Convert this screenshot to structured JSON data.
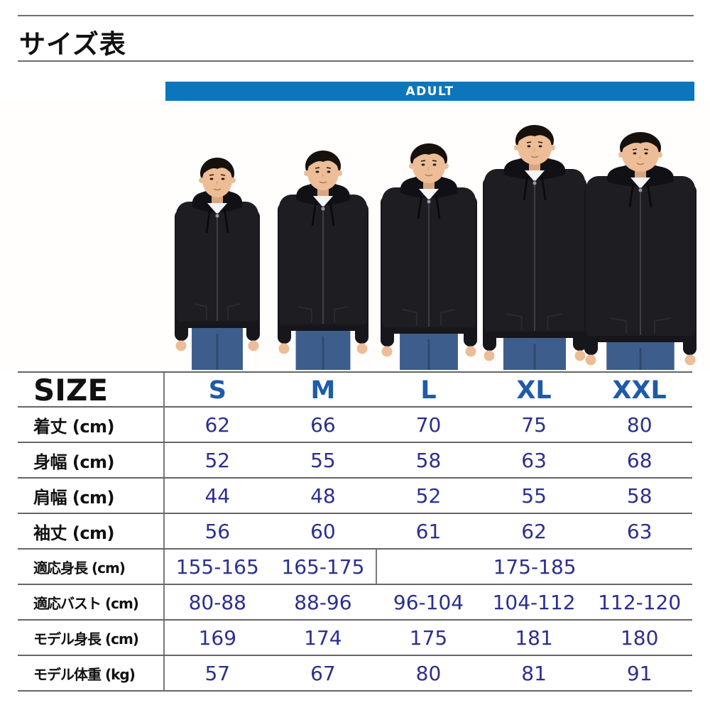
{
  "page": {
    "title": "サイズ表"
  },
  "banner": {
    "label": "ADULT",
    "color": "#0b76bc"
  },
  "models": [
    {
      "figure": "model-s",
      "column": "S"
    },
    {
      "figure": "model-m",
      "column": "M"
    },
    {
      "figure": "model-l",
      "column": "L"
    },
    {
      "figure": "model-xl",
      "column": "XL"
    },
    {
      "figure": "model-xxl",
      "column": "XXL"
    }
  ],
  "table": {
    "header": {
      "label": "SIZE",
      "columns": [
        "S",
        "M",
        "L",
        "XL",
        "XXL"
      ]
    },
    "rows": [
      {
        "label": "着丈 (cm)",
        "values": [
          "62",
          "66",
          "70",
          "75",
          "80"
        ]
      },
      {
        "label": "身幅 (cm)",
        "values": [
          "52",
          "55",
          "58",
          "63",
          "68"
        ]
      },
      {
        "label": "肩幅 (cm)",
        "values": [
          "44",
          "48",
          "52",
          "55",
          "58"
        ]
      },
      {
        "label": "袖丈 (cm)",
        "values": [
          "56",
          "60",
          "61",
          "62",
          "63"
        ]
      },
      {
        "label": "適応身長 (cm)",
        "values": [
          "155-165",
          "165-175",
          "175-185"
        ],
        "merged_last_span": 3
      },
      {
        "label": "適応バスト (cm)",
        "values": [
          "80-88",
          "88-96",
          "96-104",
          "104-112",
          "112-120"
        ]
      },
      {
        "label": "モデル身長 (cm)",
        "values": [
          "169",
          "174",
          "175",
          "181",
          "180"
        ]
      },
      {
        "label": "モデル体重 (kg)",
        "values": [
          "57",
          "67",
          "80",
          "81",
          "91"
        ]
      }
    ]
  },
  "colors": {
    "banner_blue": "#0b76bc",
    "size_letter_blue": "#1f5ba8",
    "value_navy": "#2b2f8e",
    "hoodie": "#1d1d22",
    "hoodie_dark": "#16161b",
    "hood": "#111115",
    "hair": "#17110d",
    "skin": "#ecbd96",
    "skin_shade": "#d9a57f",
    "tee_white": "#f4f4f4",
    "jeans": "#3d5e8c",
    "jeans_dark": "#2e4a70"
  }
}
